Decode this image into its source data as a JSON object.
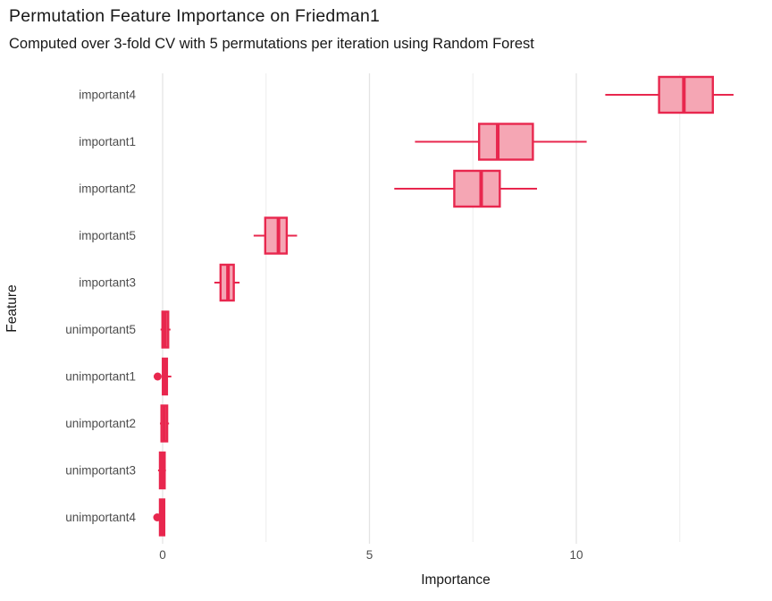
{
  "chart_data": {
    "type": "boxplot",
    "orientation": "horizontal",
    "title": "Permutation Feature Importance on Friedman1",
    "subtitle": "Computed over 3-fold CV with 5 permutations per iteration using Random Forest",
    "xlabel": "Importance",
    "ylabel": "Feature",
    "xlim": [
      -0.48,
      14.7
    ],
    "x_major_ticks": [
      0,
      5,
      10
    ],
    "x_minor_gridlines": [
      2.5,
      7.5,
      12.5
    ],
    "grid": "vertical-only",
    "legend": "none",
    "categories": [
      "important4",
      "important1",
      "important2",
      "important5",
      "important3",
      "unimportant5",
      "unimportant1",
      "unimportant2",
      "unimportant3",
      "unimportant4"
    ],
    "boxes": [
      {
        "feature": "important4",
        "whisker_low": 10.7,
        "q1": 12.0,
        "median": 12.6,
        "q3": 13.3,
        "whisker_high": 13.8,
        "outliers": []
      },
      {
        "feature": "important1",
        "whisker_low": 6.1,
        "q1": 7.65,
        "median": 8.1,
        "q3": 8.95,
        "whisker_high": 10.25,
        "outliers": []
      },
      {
        "feature": "important2",
        "whisker_low": 5.6,
        "q1": 7.05,
        "median": 7.7,
        "q3": 8.15,
        "whisker_high": 9.05,
        "outliers": []
      },
      {
        "feature": "important5",
        "whisker_low": 2.2,
        "q1": 2.48,
        "median": 2.8,
        "q3": 3.0,
        "whisker_high": 3.25,
        "outliers": []
      },
      {
        "feature": "important3",
        "whisker_low": 1.25,
        "q1": 1.4,
        "median": 1.58,
        "q3": 1.72,
        "whisker_high": 1.86,
        "outliers": []
      },
      {
        "feature": "unimportant5",
        "whisker_low": -0.05,
        "q1": -0.005,
        "median": 0.06,
        "q3": 0.135,
        "whisker_high": 0.19,
        "outliers": []
      },
      {
        "feature": "unimportant1",
        "whisker_low": -0.02,
        "q1": 0.005,
        "median": 0.05,
        "q3": 0.105,
        "whisker_high": 0.21,
        "outliers": [
          -0.12
        ]
      },
      {
        "feature": "unimportant2",
        "whisker_low": -0.065,
        "q1": -0.028,
        "median": 0.04,
        "q3": 0.11,
        "whisker_high": 0.155,
        "outliers": []
      },
      {
        "feature": "unimportant3",
        "whisker_low": -0.11,
        "q1": -0.065,
        "median": -0.005,
        "q3": 0.05,
        "whisker_high": 0.08,
        "outliers": []
      },
      {
        "feature": "unimportant4",
        "whisker_low": -0.085,
        "q1": -0.065,
        "median": -0.015,
        "q3": 0.04,
        "whisker_high": 0.065,
        "outliers": [
          -0.13
        ]
      }
    ],
    "colors": {
      "box_stroke": "#e8274e",
      "box_fill": "#f5a6b4",
      "grid_major": "#e4e4e4",
      "grid_minor": "#ededed",
      "axis_text": "#4d4d4d",
      "text": "#181818",
      "background": "#ffffff"
    }
  }
}
